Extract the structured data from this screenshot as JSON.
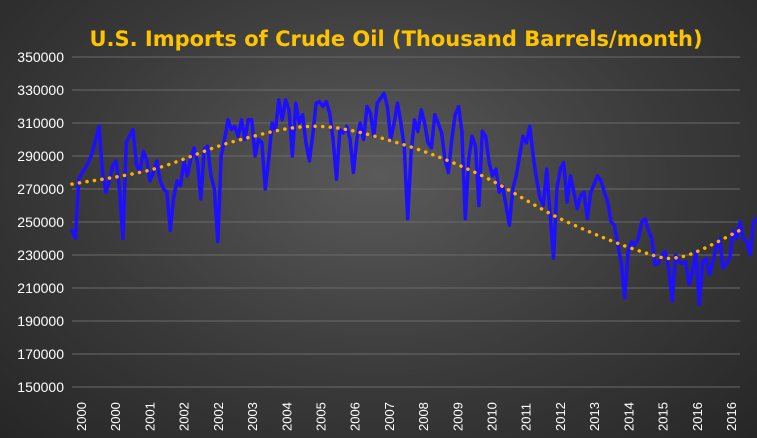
{
  "colors": {
    "title": "#ffc400",
    "series": "#1f0fff",
    "trend": "#ffb000",
    "grid": "#6a6a6a",
    "text": "#ffffff"
  },
  "chart_data": {
    "type": "line",
    "title": "U.S. Imports of Crude Oil (Thousand Barrels/month)",
    "xlabel": "",
    "ylabel": "",
    "ylim": [
      150000,
      350000
    ],
    "y_ticks": [
      "150000",
      "170000",
      "190000",
      "210000",
      "230000",
      "250000",
      "270000",
      "290000",
      "310000",
      "330000",
      "350000"
    ],
    "x_tick_labels": [
      "2000",
      "2000",
      "2001",
      "2002",
      "2002",
      "2003",
      "2004",
      "2005",
      "2006",
      "2007",
      "2008",
      "2009",
      "2010",
      "2011",
      "2012",
      "2013",
      "2014",
      "2015",
      "2016",
      "2016"
    ],
    "grid": true,
    "legend": "none",
    "series": [
      {
        "style": "solid",
        "x_start": "2000-01",
        "monthly_values": [
          245000,
          240000,
          276000,
          280000,
          283000,
          287000,
          292000,
          300000,
          308000,
          280000,
          268000,
          275000,
          284000,
          287000,
          270000,
          240000,
          298000,
          302000,
          306000,
          285000,
          280000,
          293000,
          288000,
          275000,
          280000,
          287000,
          275000,
          270000,
          268000,
          245000,
          265000,
          275000,
          272000,
          287000,
          278000,
          288000,
          295000,
          286000,
          264000,
          294000,
          296000,
          278000,
          270000,
          238000,
          290000,
          300000,
          312000,
          306000,
          308000,
          302000,
          312000,
          300000,
          312000,
          312000,
          290000,
          300000,
          298000,
          270000,
          288000,
          310000,
          306000,
          324000,
          312000,
          324000,
          318000,
          290000,
          322000,
          310000,
          315000,
          298000,
          287000,
          303000,
          322000,
          323000,
          320000,
          323000,
          316000,
          300000,
          276000,
          306000,
          304000,
          308000,
          300000,
          280000,
          300000,
          310000,
          300000,
          320000,
          316000,
          302000,
          322000,
          325000,
          328000,
          320000,
          300000,
          310000,
          322000,
          310000,
          295000,
          252000,
          292000,
          312000,
          305000,
          318000,
          310000,
          298000,
          295000,
          315000,
          310000,
          304000,
          288000,
          280000,
          300000,
          315000,
          320000,
          305000,
          252000,
          288000,
          302000,
          296000,
          260000,
          305000,
          302000,
          286000,
          278000,
          282000,
          268000,
          272000,
          260000,
          248000,
          270000,
          278000,
          290000,
          302000,
          298000,
          308000,
          290000,
          276000,
          265000,
          260000,
          282000,
          255000,
          228000,
          270000,
          282000,
          286000,
          262000,
          278000,
          268000,
          258000,
          266000,
          268000,
          252000,
          268000,
          273000,
          278000,
          275000,
          268000,
          262000,
          250000,
          248000,
          236000,
          225000,
          204000,
          232000,
          238000,
          236000,
          240000,
          250000,
          252000,
          245000,
          240000,
          224000,
          225000,
          230000,
          232000,
          222000,
          202000,
          230000,
          226000,
          225000,
          226000,
          212000,
          220000,
          232000,
          200000,
          226000,
          228000,
          218000,
          226000,
          235000,
          240000,
          222000,
          225000,
          228000,
          245000,
          240000,
          250000,
          240000,
          238000,
          230000,
          250000,
          252000,
          248000,
          240000,
          232000,
          252000,
          263000,
          261000,
          222000
        ]
      },
      {
        "style": "dotted",
        "kind": "polynomial-trend",
        "x": [
          "2000-01",
          "2002-01",
          "2004-01",
          "2006-01",
          "2008-01",
          "2010-01",
          "2012-01",
          "2014-01",
          "2015-01",
          "2016-06"
        ],
        "values": [
          273000,
          282000,
          299000,
          308000,
          298000,
          279000,
          252000,
          232000,
          229000,
          245000
        ]
      }
    ]
  }
}
